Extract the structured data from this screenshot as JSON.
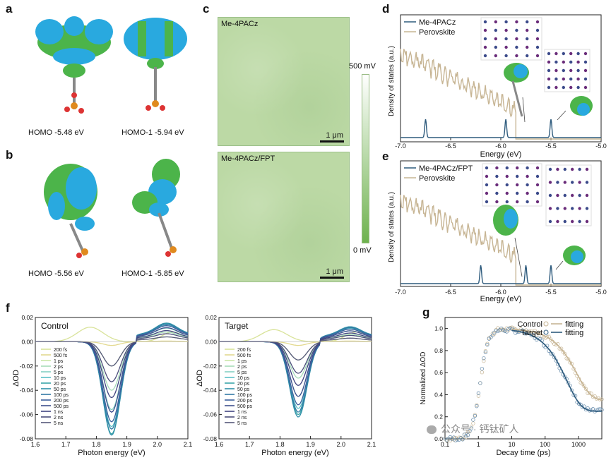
{
  "panel_labels": {
    "a": "a",
    "b": "b",
    "c": "c",
    "d": "d",
    "e": "e",
    "f": "f",
    "g": "g"
  },
  "panel_a": {
    "homo": "HOMO -5.48 eV",
    "homo1": "HOMO-1  -5.94 eV"
  },
  "panel_b": {
    "homo": "HOMO -5.56 eV",
    "homo1": "HOMO-1  -5.85 eV"
  },
  "panel_c": {
    "top_title": "Me-4PACz",
    "bottom_title": "Me-4PACz/FPT",
    "scale_label": "1 μm",
    "colorbar_max": "500 mV",
    "colorbar_min": "0 mV"
  },
  "colors": {
    "afm_green": "#bcd9a5",
    "navy": "#2e5b7d",
    "beige": "#c7b594",
    "teal": "#3aa5a8"
  },
  "chart_data": [
    {
      "id": "d",
      "type": "line",
      "xlabel": "Energy (eV)",
      "ylabel": "Density of states (a.u.)",
      "xlim": [
        -7.0,
        -5.0
      ],
      "xticks": [
        "-7.0",
        "-6.5",
        "-6.0",
        "-5.5",
        "-5.0"
      ],
      "legend": [
        "Me-4PACz",
        "Perovskite"
      ],
      "peaks_me4pacz": [
        -6.75,
        -5.95,
        -5.5
      ]
    },
    {
      "id": "e",
      "type": "line",
      "xlabel": "Energy (eV)",
      "ylabel": "Density of states (a.u.)",
      "xlim": [
        -7.0,
        -5.0
      ],
      "xticks": [
        "-7.0",
        "-6.5",
        "-6.0",
        "-5.5",
        "-5.0"
      ],
      "legend": [
        "Me-4PACz/FPT",
        "Perovskite"
      ],
      "peaks_me4pacz_fpt": [
        -6.2,
        -5.75,
        -5.5
      ]
    },
    {
      "id": "f-control",
      "type": "line",
      "title": "Control",
      "xlabel": "Photon energy (eV)",
      "ylabel": "ΔOD",
      "xlim": [
        1.6,
        2.1
      ],
      "ylim": [
        -0.08,
        0.02
      ],
      "xticks": [
        "1.6",
        "1.7",
        "1.8",
        "1.9",
        "2.0",
        "2.1"
      ],
      "yticks": [
        "0.02",
        "0.00",
        "-0.02",
        "-0.04",
        "-0.06",
        "-0.08"
      ],
      "legend": [
        "200 fs",
        "500 fs",
        "1 ps",
        "2 ps",
        "5 ps",
        "10 ps",
        "20 ps",
        "50 ps",
        "100 ps",
        "200 ps",
        "500 ps",
        "1 ns",
        "2 ns",
        "5 ns"
      ],
      "bleach_center_eV": 1.85,
      "min_values": [
        0.012,
        -0.003,
        -0.02,
        -0.04,
        -0.056,
        -0.07,
        -0.076,
        -0.077,
        -0.072,
        -0.066,
        -0.058,
        -0.046,
        -0.033,
        -0.02
      ]
    },
    {
      "id": "f-target",
      "type": "line",
      "title": "Target",
      "xlabel": "Photon energy (eV)",
      "ylabel": "ΔOD",
      "xlim": [
        1.6,
        2.1
      ],
      "ylim": [
        -0.08,
        0.02
      ],
      "xticks": [
        "1.6",
        "1.7",
        "1.8",
        "1.9",
        "2.0",
        "2.1"
      ],
      "yticks": [
        "0.02",
        "0.00",
        "-0.02",
        "-0.04",
        "-0.06",
        "-0.08"
      ],
      "legend": [
        "200 fs",
        "500 fs",
        "1 ps",
        "2 ps",
        "5 ps",
        "10 ps",
        "20 ps",
        "50 ps",
        "100 ps",
        "200 ps",
        "500 ps",
        "1 ns",
        "2 ns",
        "5 ns"
      ],
      "bleach_center_eV": 1.86,
      "min_values": [
        0.01,
        -0.003,
        -0.015,
        -0.03,
        -0.045,
        -0.055,
        -0.06,
        -0.062,
        -0.058,
        -0.052,
        -0.045,
        -0.036,
        -0.026,
        -0.015
      ]
    },
    {
      "id": "g",
      "type": "scatter",
      "xlabel": "Decay time (ps)",
      "ylabel": "Normalized ΔOD",
      "xscale": "log",
      "xlim": [
        0.1,
        5000
      ],
      "ylim": [
        0.0,
        1.1
      ],
      "xticks": [
        "0.1",
        "1",
        "10",
        "100",
        "1000"
      ],
      "yticks": [
        "0.0",
        "0.2",
        "0.4",
        "0.6",
        "0.8",
        "1.0"
      ],
      "legend": [
        "Control",
        "fitting",
        "Target",
        "fitting"
      ]
    }
  ],
  "watermark": "公众号 · 钙钛矿人"
}
